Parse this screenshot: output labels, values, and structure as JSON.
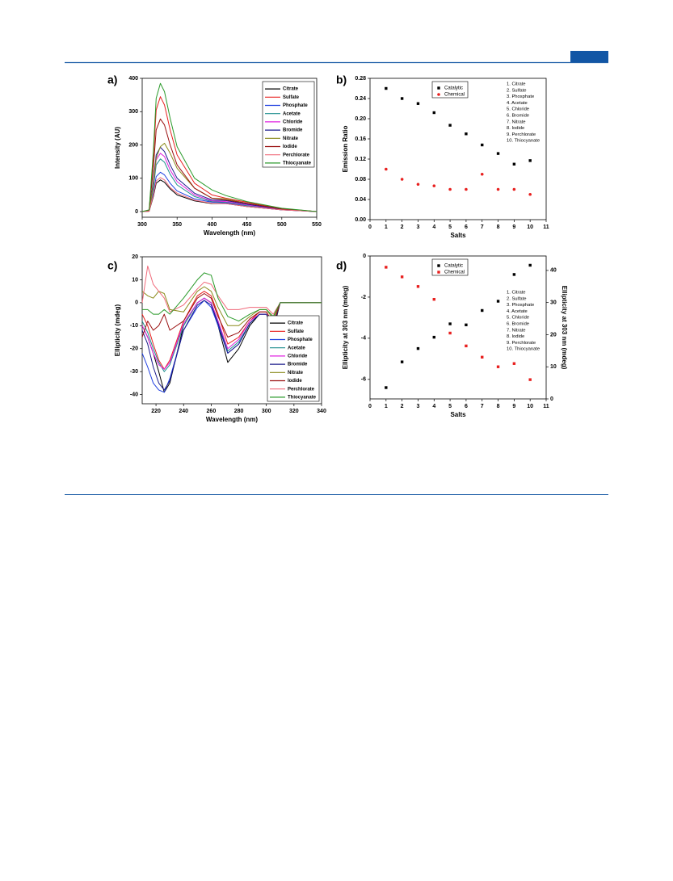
{
  "chart_data": [
    {
      "type": "line",
      "label": "a)",
      "xlabel": "Wavelength (nm)",
      "ylabel": "Intensity (AU)",
      "x": [
        300,
        310,
        316,
        320,
        326,
        332,
        340,
        350,
        375,
        400,
        420,
        450,
        500,
        550
      ],
      "xlim": [
        300,
        550
      ],
      "ylim": [
        -17,
        400
      ],
      "xticks": [
        300,
        350,
        400,
        450,
        500,
        550
      ],
      "yticks": [
        0,
        100,
        200,
        300,
        400
      ],
      "legend": "upper right",
      "series": [
        {
          "name": "Citrate",
          "color": "#000000",
          "values": [
            0,
            1,
            45,
            85,
            95,
            88,
            68,
            50,
            32,
            24,
            24,
            15,
            5,
            0
          ]
        },
        {
          "name": "Sulfate",
          "color": "#e8201f",
          "values": [
            0,
            4,
            160,
            305,
            345,
            320,
            245,
            170,
            85,
            50,
            40,
            28,
            9,
            0
          ]
        },
        {
          "name": "Phosphate",
          "color": "#1f3fe0",
          "values": [
            0,
            2,
            55,
            105,
            118,
            110,
            85,
            62,
            38,
            28,
            26,
            16,
            5,
            0
          ]
        },
        {
          "name": "Acetate",
          "color": "#1f8f8f",
          "values": [
            0,
            2,
            70,
            140,
            158,
            148,
            112,
            80,
            45,
            30,
            28,
            18,
            6,
            0
          ]
        },
        {
          "name": "Chloride",
          "color": "#e020e0",
          "values": [
            0,
            2,
            80,
            155,
            175,
            165,
            125,
            90,
            50,
            32,
            30,
            20,
            6,
            0
          ]
        },
        {
          "name": "Bromide",
          "color": "#1a1a8c",
          "values": [
            0,
            2,
            90,
            170,
            193,
            180,
            140,
            100,
            55,
            35,
            33,
            22,
            7,
            0
          ]
        },
        {
          "name": "Nitrate",
          "color": "#8a8a1a",
          "values": [
            0,
            2,
            80,
            160,
            195,
            205,
            175,
            130,
            70,
            40,
            38,
            25,
            8,
            0
          ]
        },
        {
          "name": "Iodide",
          "color": "#9a1010",
          "values": [
            0,
            3,
            130,
            245,
            278,
            260,
            200,
            140,
            70,
            40,
            35,
            25,
            8,
            0
          ]
        },
        {
          "name": "Perchlorate",
          "color": "#f06a7a",
          "values": [
            0,
            1,
            50,
            92,
            102,
            95,
            72,
            55,
            34,
            25,
            24,
            15,
            5,
            0
          ]
        },
        {
          "name": "Thiocyanate",
          "color": "#2a9a2a",
          "values": [
            0,
            5,
            180,
            340,
            385,
            360,
            280,
            195,
            100,
            65,
            48,
            30,
            10,
            0
          ]
        }
      ]
    },
    {
      "type": "scatter",
      "label": "b)",
      "xlabel": "Salts",
      "ylabel": "Emission Ratio",
      "x": [
        1,
        2,
        3,
        4,
        5,
        6,
        7,
        8,
        9,
        10
      ],
      "xlim": [
        0,
        11
      ],
      "ylim": [
        0,
        0.28
      ],
      "xticks": [
        0,
        1,
        2,
        3,
        4,
        5,
        6,
        7,
        8,
        9,
        10,
        11
      ],
      "yticks": [
        {
          "value": 0,
          "label": "0.00"
        },
        0.04,
        0.08,
        0.12,
        0.16,
        {
          "value": 0.2,
          "label": "0.20"
        },
        0.24,
        0.28
      ],
      "legend": "upper center",
      "annotations": [
        "1. Citrate",
        "2. Sulfate",
        "3. Phosphate",
        "4. Acetate",
        "5. Chloride",
        "6. Bromide",
        "7. Nitrate",
        "8. Iodide",
        "9. Perchlorate",
        "10. Thiocyanate"
      ],
      "series": [
        {
          "name": "Catalytic",
          "color": "#000000",
          "marker": "square",
          "values": [
            0.26,
            0.24,
            0.23,
            0.212,
            0.187,
            0.17,
            0.148,
            0.131,
            0.11,
            0.117
          ]
        },
        {
          "name": "Chemical",
          "color": "#e8201f",
          "marker": "circle",
          "values": [
            0.1,
            0.08,
            0.07,
            0.067,
            0.06,
            0.06,
            0.09,
            0.06,
            0.06,
            0.05
          ]
        }
      ]
    },
    {
      "type": "line",
      "label": "c)",
      "xlabel": "Wavelength (nm)",
      "ylabel": "Ellipticity (mdeg)",
      "x": [
        210,
        214,
        218,
        222,
        226,
        230,
        240,
        250,
        255,
        260,
        265,
        272,
        280,
        288,
        295,
        300,
        305,
        310,
        320,
        340
      ],
      "xlim": [
        210,
        340
      ],
      "ylim": [
        -44,
        20
      ],
      "xticks": [
        220,
        240,
        260,
        280,
        300,
        320,
        340
      ],
      "yticks": [
        -40,
        -30,
        -20,
        -10,
        0,
        10,
        20
      ],
      "legend": "lower right",
      "series": [
        {
          "name": "Citrate",
          "color": "#000000",
          "values": [
            -10,
            -15,
            -22,
            -30,
            -39,
            -35,
            -10,
            0,
            2,
            0,
            -10,
            -26,
            -20,
            -10,
            -5,
            -5,
            -12,
            0,
            0,
            0
          ]
        },
        {
          "name": "Sulfate",
          "color": "#e8201f",
          "values": [
            -5,
            -10,
            -18,
            -25,
            -29,
            -25,
            -8,
            3,
            5,
            3,
            -5,
            -18,
            -15,
            -8,
            -4,
            -4,
            -9,
            0,
            0,
            0
          ]
        },
        {
          "name": "Phosphate",
          "color": "#1f3fe0",
          "values": [
            -22,
            -28,
            -35,
            -38,
            -39,
            -33,
            -12,
            -2,
            1,
            -2,
            -10,
            -22,
            -18,
            -9,
            -5,
            -5,
            -10,
            0,
            0,
            0
          ]
        },
        {
          "name": "Acetate",
          "color": "#1f8f8f",
          "values": [
            -8,
            -13,
            -20,
            -26,
            -30,
            -27,
            -10,
            0,
            2,
            0,
            -8,
            -21,
            -17,
            -9,
            -5,
            -5,
            -10,
            0,
            0,
            0
          ]
        },
        {
          "name": "Chloride",
          "color": "#e020e0",
          "values": [
            -10,
            -15,
            -22,
            -27,
            -29,
            -26,
            -9,
            0,
            2,
            0,
            -8,
            -20,
            -16,
            -8,
            -5,
            -5,
            -9,
            0,
            0,
            0
          ]
        },
        {
          "name": "Bromide",
          "color": "#1a1a8c",
          "values": [
            -12,
            -18,
            -28,
            -35,
            -38,
            -34,
            -12,
            -1,
            1,
            -1,
            -9,
            -22,
            -18,
            -9,
            -5,
            -5,
            -10,
            0,
            0,
            0
          ]
        },
        {
          "name": "Nitrate",
          "color": "#8a8a1a",
          "values": [
            5,
            3,
            2,
            5,
            4,
            -3,
            -4,
            5,
            7,
            5,
            -2,
            -10,
            -10,
            -6,
            -3,
            -3,
            -7,
            0,
            0,
            0
          ]
        },
        {
          "name": "Iodide",
          "color": "#9a1010",
          "values": [
            -15,
            -8,
            -12,
            -10,
            -5,
            -12,
            -8,
            2,
            4,
            2,
            -6,
            -15,
            -13,
            -7,
            -4,
            -4,
            -9,
            0,
            0,
            0
          ]
        },
        {
          "name": "Perchlorate",
          "color": "#f06a7a",
          "values": [
            0,
            16,
            8,
            5,
            2,
            -4,
            -1,
            6,
            9,
            8,
            3,
            -3,
            -3,
            -2,
            -2,
            -2,
            -5,
            0,
            0,
            0
          ]
        },
        {
          "name": "Thiocyanate",
          "color": "#2a9a2a",
          "values": [
            -3,
            -3,
            -5,
            -5,
            -3,
            -5,
            2,
            10,
            13,
            12,
            2,
            -6,
            -8,
            -5,
            -3,
            -3,
            -6,
            0,
            0,
            0
          ]
        }
      ]
    },
    {
      "type": "scatter",
      "label": "d)",
      "xlabel": "Salts",
      "ylabel": "Ellipticity at 303 nm (mdeg)",
      "y2label": "Ellipticity at 303 nm (mdeg)",
      "x": [
        1,
        2,
        3,
        4,
        5,
        6,
        7,
        8,
        9,
        10
      ],
      "xlim": [
        0,
        11
      ],
      "ylim": [
        -6.95,
        0
      ],
      "y2lim": [
        0,
        44.5
      ],
      "xticks": [
        0,
        1,
        2,
        3,
        4,
        5,
        6,
        7,
        8,
        9,
        10,
        11
      ],
      "yticks": [
        -6,
        -4,
        -2,
        0
      ],
      "y2ticks": [
        0,
        10,
        20,
        30,
        40
      ],
      "legend": "upper center",
      "annotations": [
        "1. Citrate",
        "2. Sulfate",
        "3. Phosphate",
        "4. Acetate",
        "5. Chloride",
        "6. Bromide",
        "7. Nitrate",
        "8. Iodide",
        "9. Perchlorate",
        "10. Thiocyanate"
      ],
      "series": [
        {
          "name": "Catalytic",
          "color": "#000000",
          "marker": "square",
          "values": [
            -6.4,
            -5.15,
            -4.5,
            -3.95,
            -3.3,
            -3.35,
            -2.65,
            -2.2,
            -0.9,
            -0.45
          ]
        },
        {
          "name": "Chemical",
          "color": "#e8201f",
          "marker": "square",
          "axis": "y2",
          "values": [
            41,
            38,
            35,
            31,
            20.5,
            16.5,
            13,
            10,
            11,
            6
          ]
        }
      ]
    }
  ]
}
